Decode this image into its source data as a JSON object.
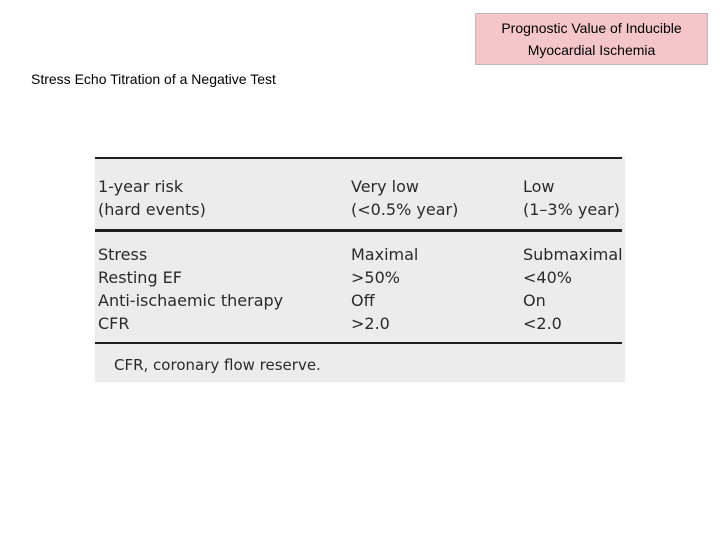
{
  "header": {
    "title_line1": "Prognostic Value of Inducible",
    "title_line2": "Myocardial Ischemia"
  },
  "slide": {
    "subtitle": "Stress Echo Titration of a Negative Test"
  },
  "table": {
    "head": {
      "col1_line1": "1-year risk",
      "col1_line2": "(hard events)",
      "col2_line1": "Very low",
      "col2_line2": "(<0.5% year)",
      "col3_line1": "Low",
      "col3_line2": "(1–3% year)"
    },
    "rows": [
      {
        "label": "Stress",
        "very_low": "Maximal",
        "low": "Submaximal"
      },
      {
        "label": "Resting EF",
        "very_low": ">50%",
        "low": "<40%"
      },
      {
        "label": "Anti-ischaemic therapy",
        "very_low": "Off",
        "low": "On"
      },
      {
        "label": "CFR",
        "very_low": ">2.0",
        "low": "<2.0"
      }
    ],
    "footnote": "CFR, coronary flow reserve."
  }
}
